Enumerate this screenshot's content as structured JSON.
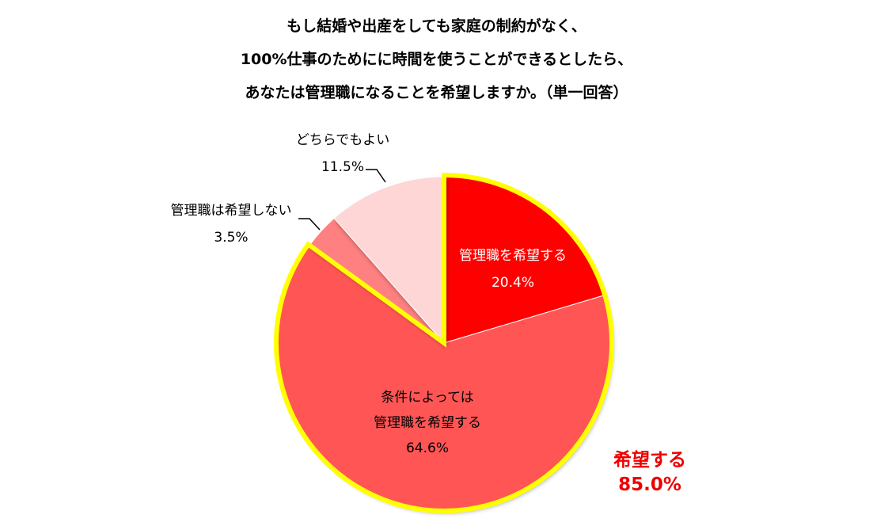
{
  "title": {
    "line1": "もし結婚や出産をしても家庭の制約がなく、",
    "line2": "100%仕事のためにに時間を使うことができるとしたら、",
    "line3": "あなたは管理職になることを希望しますか。（単一回答）"
  },
  "chart_data": {
    "type": "pie",
    "start_angle_deg": 0,
    "direction": "clockwise",
    "slices": [
      {
        "label": "管理職を希望する",
        "label2": "",
        "value": 20.4,
        "value_text": "20.4%",
        "color": "#ff0000",
        "text_color": "#ffffff",
        "highlight": true
      },
      {
        "label": "条件によっては",
        "label2": "管理職を希望する",
        "value": 64.6,
        "value_text": "64.6%",
        "color": "#ff5555",
        "text_color": "#000000",
        "highlight": true
      },
      {
        "label": "管理職は希望しない",
        "label2": "",
        "value": 3.5,
        "value_text": "3.5%",
        "color": "#ff8080",
        "text_color": "#000000",
        "highlight": false
      },
      {
        "label": "どちらでもよい",
        "label2": "",
        "value": 11.5,
        "value_text": "11.5%",
        "color": "#ffd6d6",
        "text_color": "#000000",
        "highlight": false
      }
    ],
    "highlight_color": "#ffff00",
    "callout": {
      "label": "希望する",
      "value": "85.0%",
      "color": "#ee0000"
    }
  }
}
